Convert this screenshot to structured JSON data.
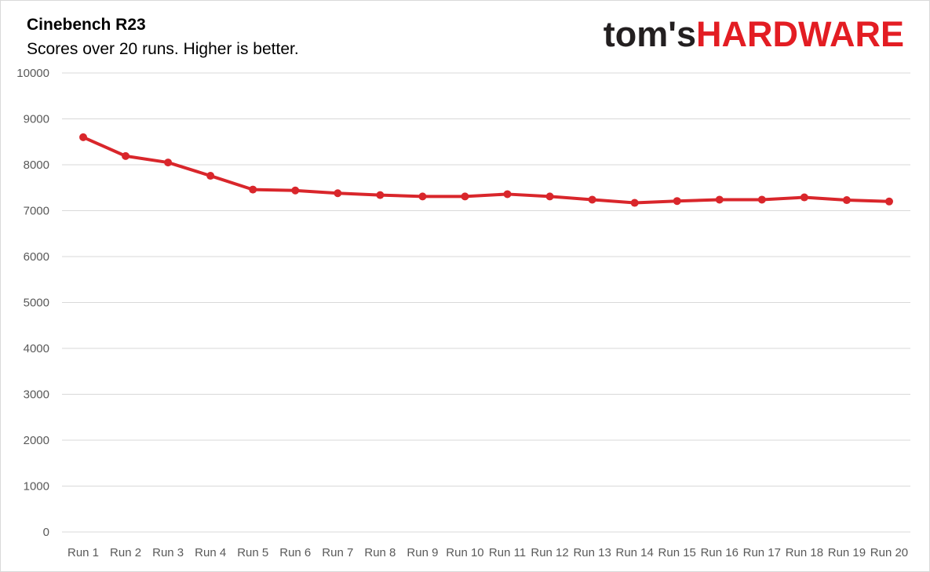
{
  "logo": {
    "part1": "tom's",
    "part2": "HARDWARE"
  },
  "colors": {
    "series": "#d9262b",
    "grid": "#d9d9d9",
    "tick": "#595959",
    "brand_red": "#e31d23"
  },
  "chart_data": {
    "type": "line",
    "title": "Cinebench R23",
    "subtitle": "Scores over 20 runs. Higher is better.",
    "xlabel": "",
    "ylabel": "",
    "categories": [
      "Run 1",
      "Run 2",
      "Run 3",
      "Run 4",
      "Run 5",
      "Run 6",
      "Run 7",
      "Run 8",
      "Run 9",
      "Run 10",
      "Run 11",
      "Run 12",
      "Run 13",
      "Run 14",
      "Run 15",
      "Run 16",
      "Run 17",
      "Run 18",
      "Run 19",
      "Run 20"
    ],
    "series": [
      {
        "values": [
          8600,
          8190,
          8050,
          7760,
          7460,
          7440,
          7380,
          7340,
          7310,
          7310,
          7360,
          7310,
          7240,
          7170,
          7210,
          7240,
          7240,
          7290,
          7230,
          7200
        ]
      }
    ],
    "ylim": [
      0,
      10000
    ],
    "yticks": [
      0,
      1000,
      2000,
      3000,
      4000,
      5000,
      6000,
      7000,
      8000,
      9000,
      10000
    ],
    "grid": true,
    "legend": "none"
  }
}
